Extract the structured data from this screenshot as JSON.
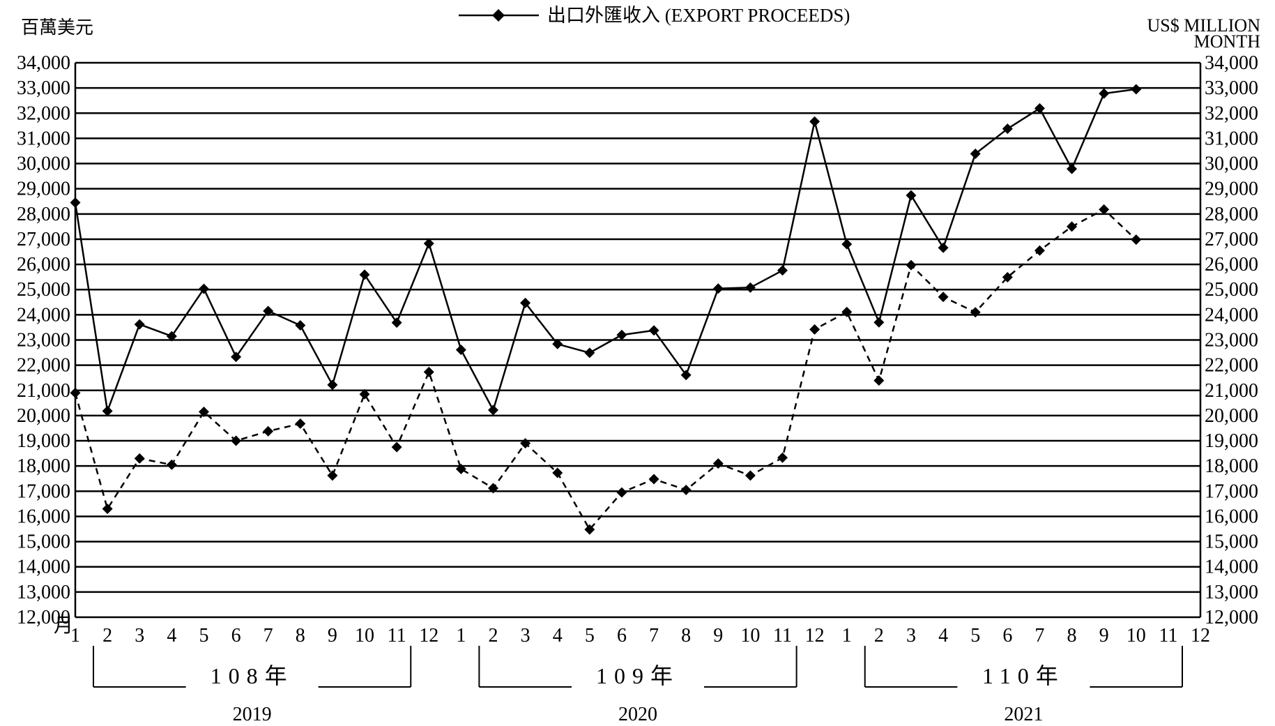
{
  "chart_data": {
    "type": "line",
    "legend_label": "出口外匯收入 (EXPORT PROCEEDS)",
    "y_unit_left": "百萬美元",
    "y_unit_right_1": "US$ MILLION",
    "y_unit_right_2": "MONTH",
    "x_unit": "月",
    "ylim": [
      12000,
      34000
    ],
    "y_ticks": [
      "12,000",
      "13,000",
      "14,000",
      "15,000",
      "16,000",
      "17,000",
      "18,000",
      "19,000",
      "20,000",
      "21,000",
      "22,000",
      "23,000",
      "24,000",
      "25,000",
      "26,000",
      "27,000",
      "28,000",
      "29,000",
      "30,000",
      "31,000",
      "32,000",
      "33,000",
      "34,000"
    ],
    "grid": true,
    "month_labels": [
      "1",
      "2",
      "3",
      "4",
      "5",
      "6",
      "7",
      "8",
      "9",
      "10",
      "11",
      "12",
      "1",
      "2",
      "3",
      "4",
      "5",
      "6",
      "7",
      "8",
      "9",
      "10",
      "11",
      "12",
      "1",
      "2",
      "3",
      "4",
      "5",
      "6",
      "7",
      "8",
      "9",
      "10",
      "11",
      "12"
    ],
    "years": [
      {
        "roc": "108年",
        "ad": "2019"
      },
      {
        "roc": "109年",
        "ad": "2020"
      },
      {
        "roc": "110年",
        "ad": "2021"
      }
    ],
    "series": [
      {
        "name": "出口外匯收入 (EXPORT PROCEEDS)",
        "style": "solid",
        "values": [
          28450,
          20180,
          23620,
          23150,
          25030,
          22330,
          24150,
          23580,
          21220,
          25590,
          23690,
          26830,
          22610,
          20220,
          24470,
          22840,
          22490,
          23200,
          23380,
          21610,
          25040,
          25080,
          25760,
          31670,
          26800,
          23700,
          28740,
          26660,
          30390,
          31380,
          32190,
          29790,
          32780,
          32950
        ]
      },
      {
        "style": "dashed",
        "values": [
          20900,
          16300,
          18300,
          18050,
          20150,
          19000,
          19380,
          19680,
          17620,
          20850,
          18750,
          21730,
          17880,
          17120,
          18900,
          17730,
          15480,
          16950,
          17480,
          17050,
          18100,
          17620,
          18330,
          23420,
          24110,
          21390,
          25970,
          24710,
          24100,
          25490,
          26550,
          27500,
          28180,
          26980
        ]
      }
    ]
  }
}
